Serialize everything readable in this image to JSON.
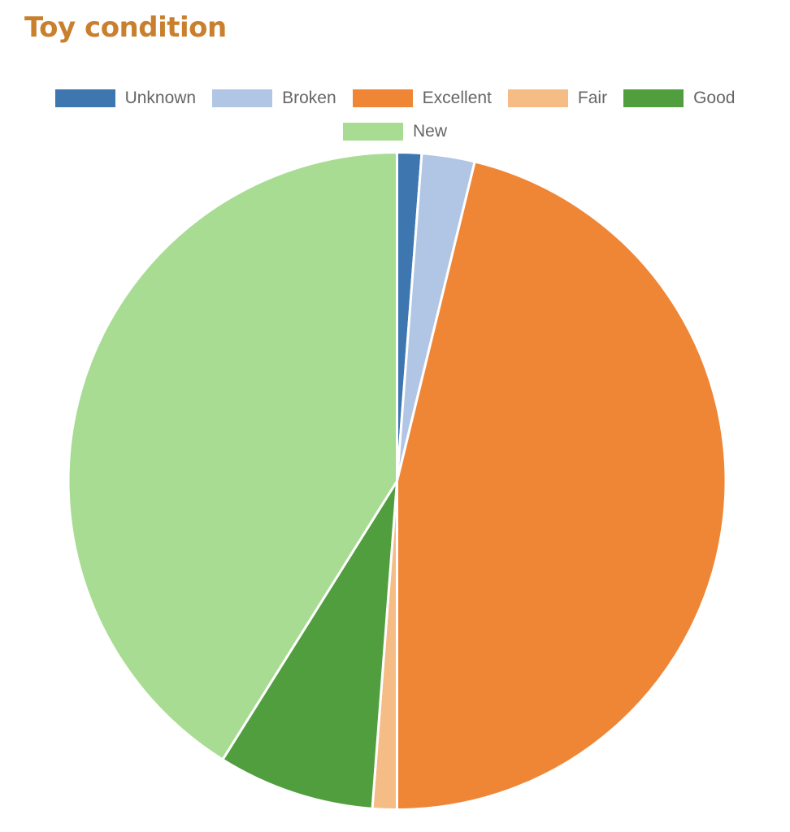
{
  "title": "Toy condition",
  "legend": {
    "items": [
      {
        "label": "Unknown",
        "color": "#3e76b0"
      },
      {
        "label": "Broken",
        "color": "#b1c6e4"
      },
      {
        "label": "Excellent",
        "color": "#ef8636"
      },
      {
        "label": "Fair",
        "color": "#f5bc86"
      },
      {
        "label": "Good",
        "color": "#519e3e"
      },
      {
        "label": "New",
        "color": "#a8dc93"
      }
    ]
  },
  "chart_data": {
    "type": "pie",
    "title": "Toy condition",
    "categories": [
      "Unknown",
      "Broken",
      "Excellent",
      "Fair",
      "Good",
      "New"
    ],
    "values": [
      1.2,
      2.6,
      46.2,
      1.2,
      7.7,
      41.1
    ],
    "unit": "percent (estimated)",
    "colors": [
      "#3e76b0",
      "#b1c6e4",
      "#ef8636",
      "#f5bc86",
      "#519e3e",
      "#a8dc93"
    ],
    "legend_position": "top",
    "start_angle": "12 o'clock, clockwise"
  }
}
